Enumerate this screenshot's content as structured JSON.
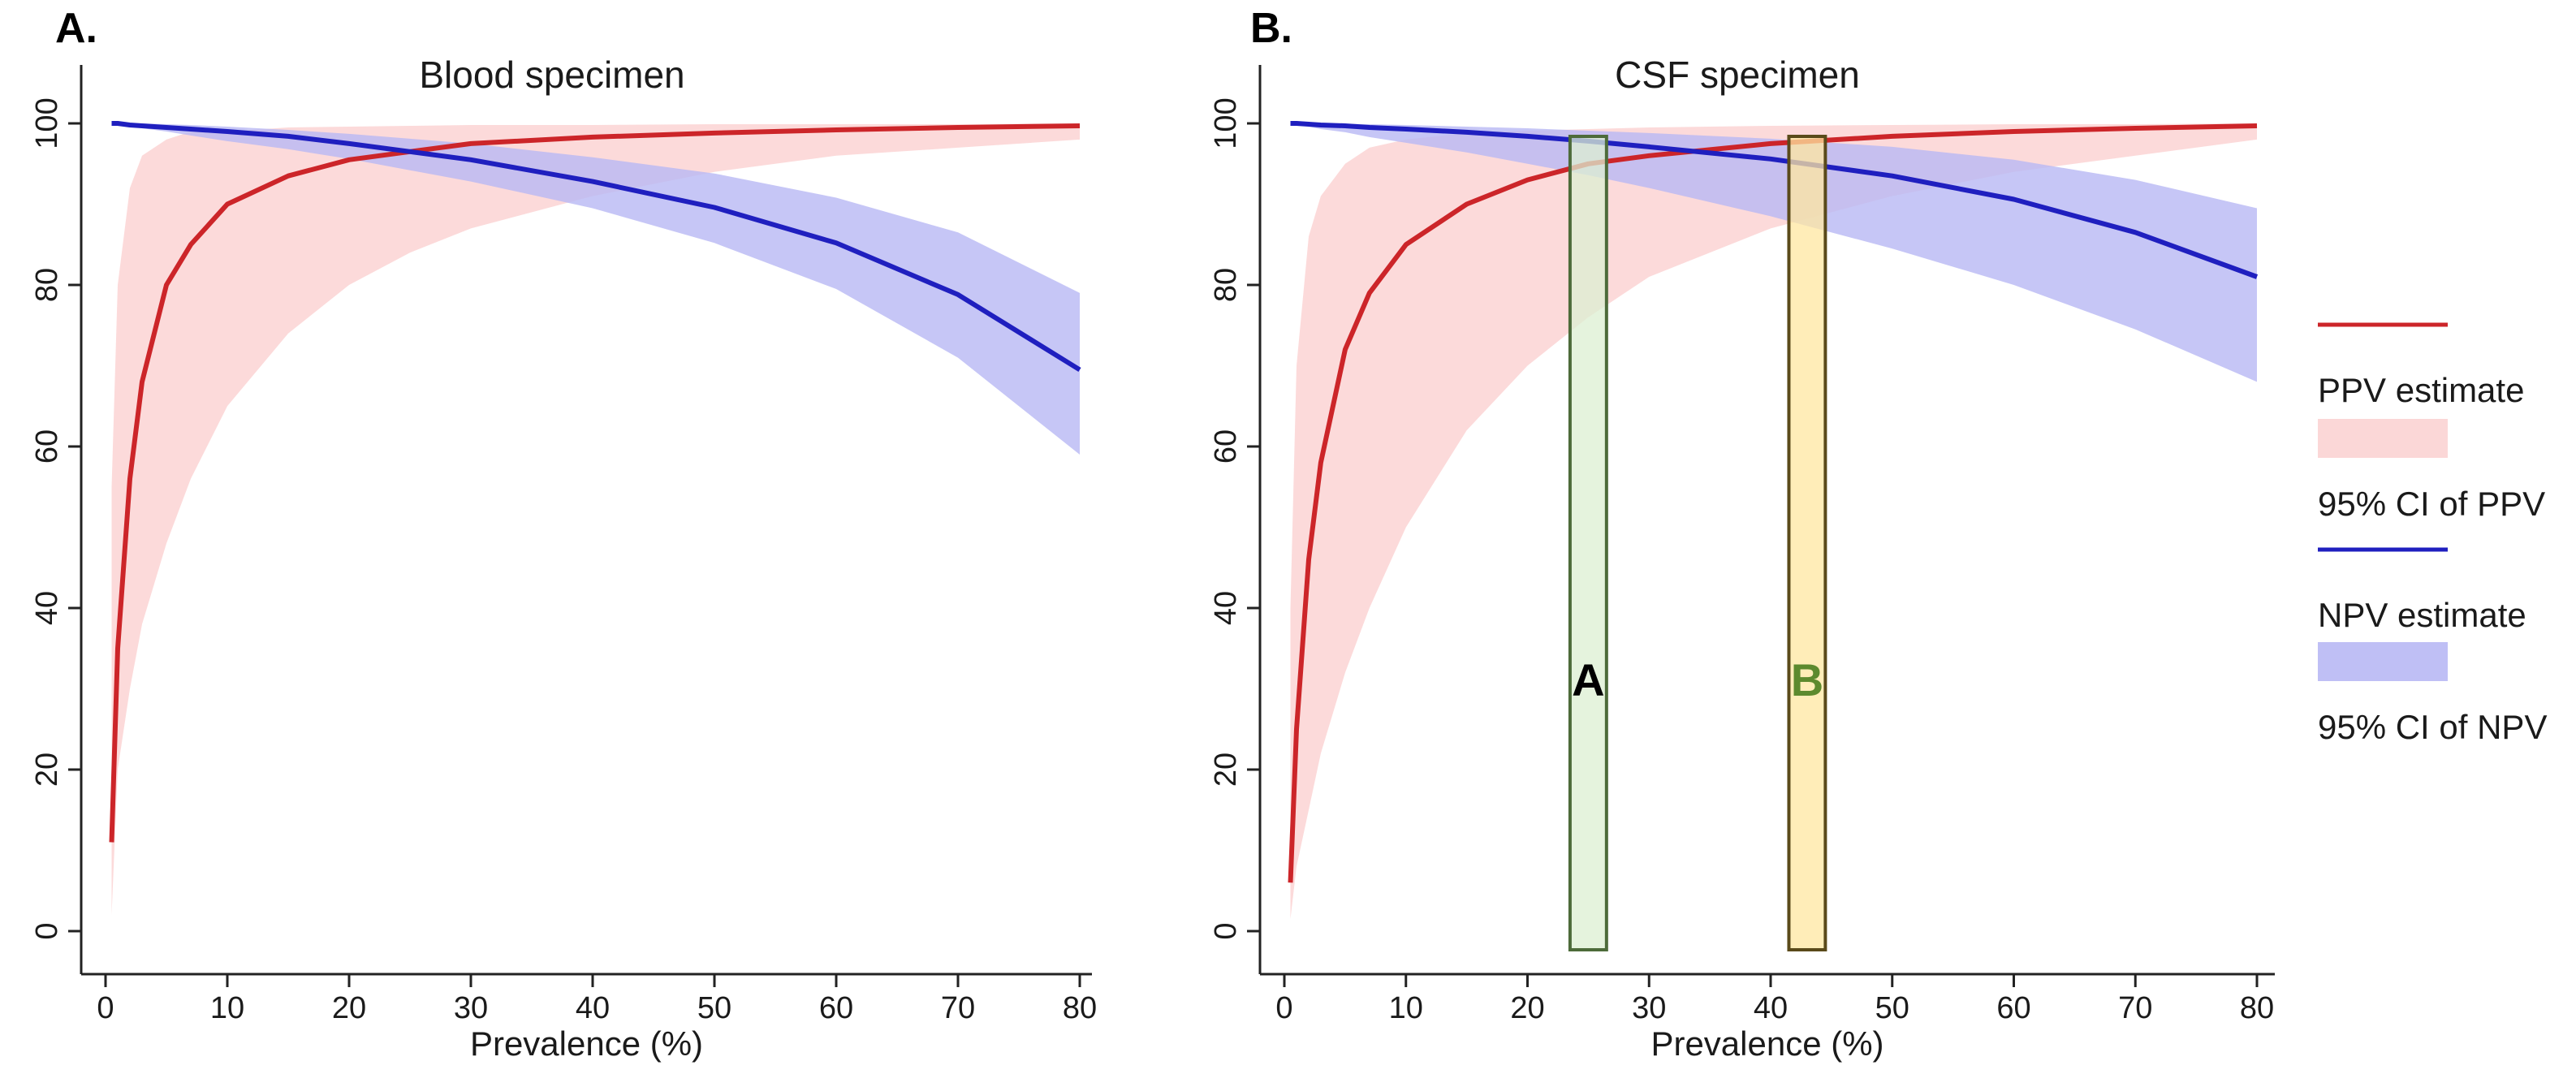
{
  "figure": {
    "legend": {
      "items": [
        {
          "label": "PPV estimate",
          "kind": "line",
          "color": "#cc2529"
        },
        {
          "label": "95% CI of PPV",
          "kind": "band",
          "color": "#fbd3d3"
        },
        {
          "label": "NPV estimate",
          "kind": "line",
          "color": "#1f1fbf"
        },
        {
          "label": "95% CI of NPV",
          "kind": "band",
          "color": "#b8b8f4"
        }
      ]
    }
  },
  "chart_data": [
    {
      "type": "line",
      "panel_label": "A.",
      "title": "Blood specimen",
      "xlabel": "Prevalence (%)",
      "ylabel": "",
      "xlim": [
        0,
        80
      ],
      "ylim": [
        0,
        100
      ],
      "xticks": [
        0,
        10,
        20,
        30,
        40,
        50,
        60,
        70,
        80
      ],
      "yticks": [
        0,
        20,
        40,
        60,
        80,
        100
      ],
      "grid": false,
      "x": [
        0.5,
        1,
        2,
        3,
        5,
        7,
        10,
        15,
        20,
        25,
        30,
        40,
        50,
        60,
        70,
        80
      ],
      "series": [
        {
          "name": "PPV estimate",
          "color": "#cc2529",
          "values": [
            11,
            35,
            56,
            68,
            80,
            85,
            90,
            93.5,
            95.5,
            96.5,
            97.5,
            98.3,
            98.8,
            99.2,
            99.5,
            99.7
          ]
        },
        {
          "name": "95% CI of PPV",
          "color": "#fbd3d3",
          "kind": "band",
          "lower": [
            2,
            20,
            30,
            38,
            48,
            56,
            65,
            74,
            80,
            84,
            87,
            91,
            94,
            96,
            97,
            98
          ],
          "upper": [
            55,
            80,
            92,
            96,
            98,
            99,
            99,
            99.5,
            99.6,
            99.7,
            99.8,
            99.8,
            99.9,
            99.9,
            99.9,
            100
          ]
        },
        {
          "name": "NPV estimate",
          "color": "#1f1fbf",
          "values": [
            100,
            100,
            99.8,
            99.7,
            99.5,
            99.3,
            99,
            98.4,
            97.5,
            96.5,
            95.5,
            92.8,
            89.6,
            85.2,
            78.8,
            69.5
          ]
        },
        {
          "name": "95% CI of NPV",
          "color": "#b8b8f4",
          "kind": "band",
          "lower": [
            100,
            100,
            99.6,
            99.4,
            99,
            98.5,
            97.8,
            96.8,
            95.6,
            94.2,
            92.8,
            89.5,
            85.2,
            79.5,
            71,
            59
          ]
        },
        {
          "name": "95% CI of NPV upper",
          "color": "#b8b8f4",
          "kind": "band-upper",
          "values": [
            100,
            100,
            100,
            100,
            99.9,
            99.8,
            99.6,
            99.2,
            98.7,
            98.1,
            97.5,
            95.8,
            93.8,
            90.8,
            86.5,
            79
          ]
        }
      ]
    },
    {
      "type": "line",
      "panel_label": "B.",
      "title": "CSF specimen",
      "xlabel": "Prevalence (%)",
      "ylabel": "",
      "xlim": [
        0,
        80
      ],
      "ylim": [
        0,
        100
      ],
      "xticks": [
        0,
        10,
        20,
        30,
        40,
        50,
        60,
        70,
        80
      ],
      "yticks": [
        0,
        20,
        40,
        60,
        80,
        100
      ],
      "grid": false,
      "x": [
        0.5,
        1,
        2,
        3,
        5,
        7,
        10,
        15,
        20,
        25,
        30,
        40,
        50,
        60,
        70,
        80
      ],
      "series": [
        {
          "name": "PPV estimate",
          "color": "#cc2529",
          "values": [
            6,
            25,
            46,
            58,
            72,
            79,
            85,
            90,
            93,
            95,
            96,
            97.5,
            98.4,
            99,
            99.4,
            99.7
          ]
        },
        {
          "name": "95% CI of PPV",
          "color": "#fbd3d3",
          "kind": "band",
          "lower": [
            1.5,
            8,
            15,
            22,
            32,
            40,
            50,
            62,
            70,
            76,
            81,
            87,
            91,
            94,
            96,
            98
          ],
          "upper": [
            40,
            70,
            86,
            91,
            95,
            97,
            98,
            98.8,
            99.1,
            99.3,
            99.5,
            99.7,
            99.8,
            99.9,
            99.9,
            100
          ]
        },
        {
          "name": "NPV estimate",
          "color": "#1f1fbf",
          "values": [
            100,
            100,
            99.9,
            99.8,
            99.7,
            99.5,
            99.3,
            98.9,
            98.4,
            97.8,
            97.1,
            95.6,
            93.5,
            90.6,
            86.5,
            81
          ]
        },
        {
          "name": "95% CI of NPV",
          "color": "#b8b8f4",
          "kind": "band",
          "lower": [
            100,
            99.9,
            99.6,
            99.3,
            98.9,
            98.3,
            97.6,
            96.4,
            95,
            93.6,
            92,
            88.5,
            84.5,
            80,
            74.5,
            68
          ]
        },
        {
          "name": "95% CI of NPV upper",
          "color": "#b8b8f4",
          "kind": "band-upper",
          "values": [
            100,
            100,
            100,
            100,
            99.95,
            99.9,
            99.8,
            99.6,
            99.4,
            99.1,
            98.8,
            98.1,
            97.1,
            95.5,
            93,
            89.5
          ]
        }
      ],
      "annotations": [
        {
          "label": "A",
          "x_range": [
            23.5,
            26.5
          ],
          "fill": "#dcefd2",
          "stroke": "#4d6b3a",
          "label_color": "#000000"
        },
        {
          "label": "B",
          "x_range": [
            41.5,
            44.5
          ],
          "fill": "#ffe7a0",
          "stroke": "#5a4a1a",
          "label_color": "#5d8a2e"
        }
      ]
    }
  ]
}
